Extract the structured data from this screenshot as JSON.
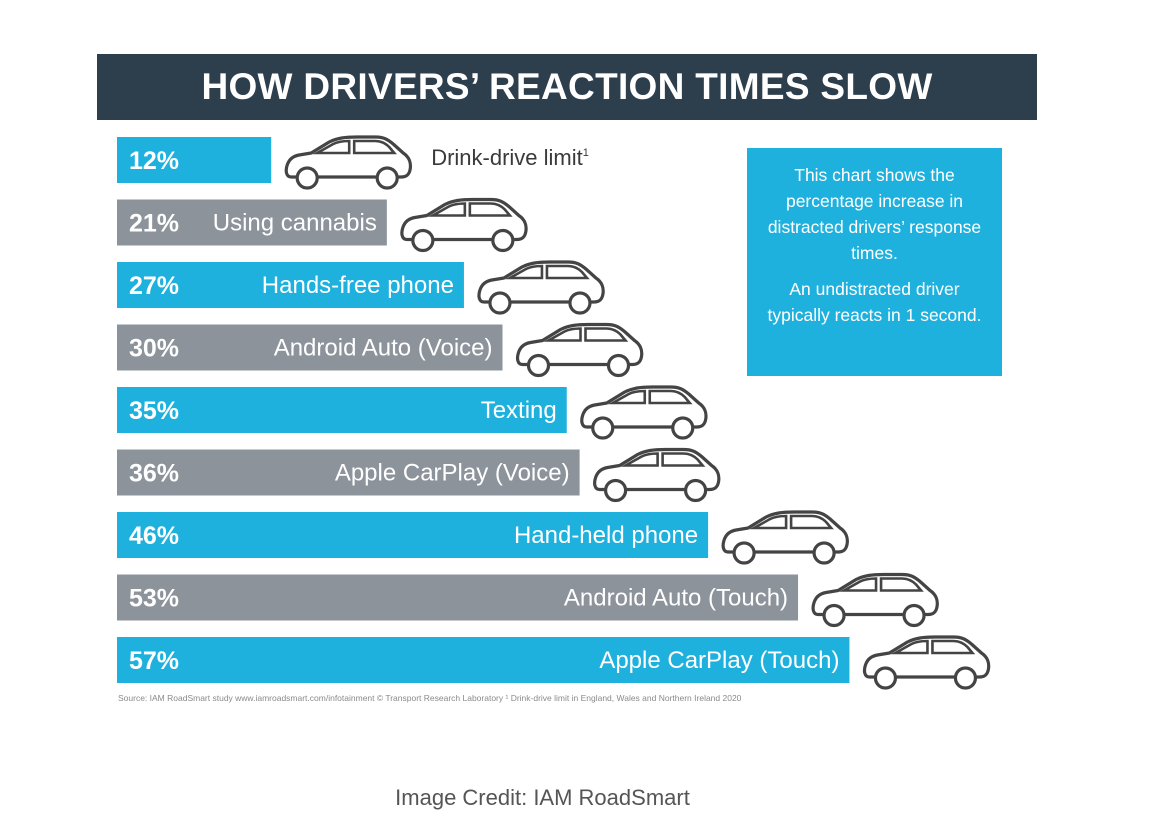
{
  "colors": {
    "blue": "#1fb1de",
    "gray": "#8c939b",
    "title_bg": "#2d3e4d"
  },
  "chart_data": {
    "type": "bar",
    "orientation": "horizontal",
    "title": "HOW DRIVERS’ REACTION TIMES SLOW",
    "unit": "%",
    "icon": "car-icon",
    "items": [
      {
        "category": "Drink-drive limit",
        "value": 12,
        "pct_label": "12%",
        "footnote": "1",
        "color": "blue"
      },
      {
        "category": "Using cannabis",
        "value": 21,
        "pct_label": "21%",
        "color": "gray"
      },
      {
        "category": "Hands-free phone",
        "value": 27,
        "pct_label": "27%",
        "color": "blue"
      },
      {
        "category": "Android Auto (Voice)",
        "value": 30,
        "pct_label": "30%",
        "color": "gray"
      },
      {
        "category": "Texting",
        "value": 35,
        "pct_label": "35%",
        "color": "blue"
      },
      {
        "category": "Apple CarPlay (Voice)",
        "value": 36,
        "pct_label": "36%",
        "color": "gray"
      },
      {
        "category": "Hand-held phone",
        "value": 46,
        "pct_label": "46%",
        "color": "blue"
      },
      {
        "category": "Android Auto (Touch)",
        "value": 53,
        "pct_label": "53%",
        "color": "gray"
      },
      {
        "category": "Apple CarPlay (Touch)",
        "value": 57,
        "pct_label": "57%",
        "color": "blue"
      }
    ]
  },
  "info_box": {
    "text1": "This chart shows the percentage increase in distracted drivers’ response times.",
    "text2": "An undistracted driver typically reacts in 1 second."
  },
  "source_note": "Source: IAM RoadSmart study www.iamroadsmart.com/infotainment   © Transport Research Laboratory   ¹ Drink-drive limit in England, Wales and Northern Ireland 2020",
  "credit": "Image Credit: IAM RoadSmart"
}
